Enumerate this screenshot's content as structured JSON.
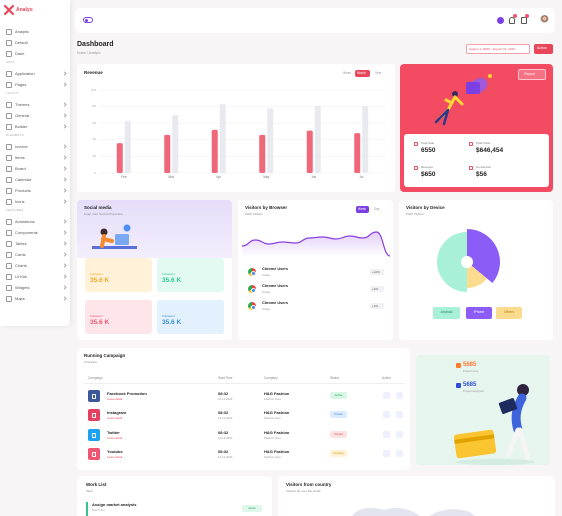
{
  "sidebar": {
    "brand": "Analyo",
    "items_top": [
      "Analytic",
      "Default",
      "Dash"
    ],
    "sections": [
      {
        "title": "APPS",
        "items": [
          "Application",
          "Pages"
        ]
      },
      {
        "title": "LAYOUT",
        "items": [
          "Themes",
          "General",
          "Builder"
        ]
      },
      {
        "title": "ELEMENTS",
        "items": [
          "Invoice",
          "Items",
          "Board",
          "Calendar",
          "Products",
          "Icons"
        ]
      },
      {
        "title": "FEATURES",
        "items": [
          "Animations",
          "Components",
          "Tables",
          "Cards",
          "Charts",
          "UI Kits",
          "Widgets",
          "Maps"
        ]
      }
    ]
  },
  "header": {
    "title": "Dashboard",
    "breadcrumb": "Home / Analytic",
    "date_range": "August 1, 2020 - August 31, 2020",
    "action": "Action"
  },
  "revenue": {
    "type": "bar",
    "title": "Revenue",
    "tabs": [
      "Week",
      "Month",
      "Year"
    ],
    "categories": [
      "Feb",
      "Mar",
      "Apr",
      "May",
      "Jun",
      "Jul"
    ],
    "series": [
      {
        "color": "#f0677a",
        "values": [
          36,
          46,
          52,
          46,
          51,
          48
        ]
      },
      {
        "color": "#e9eaf0",
        "values": [
          63,
          70,
          83,
          78,
          81,
          81
        ]
      }
    ],
    "ylim": [
      0,
      100
    ],
    "yticks": [
      0,
      20,
      40,
      60,
      80,
      100
    ]
  },
  "report": {
    "button": "Report",
    "stats": [
      {
        "label": "Total Sale",
        "value": "6550"
      },
      {
        "label": "Total Visits",
        "value": "$646,454"
      },
      {
        "label": "Revenue",
        "value": "$650"
      },
      {
        "label": "Conversion",
        "value": "$56"
      }
    ]
  },
  "social": {
    "title": "Social media",
    "subtitle": "Keep Your Social Properties",
    "tiles": [
      {
        "label": "Followers",
        "value": "35.6 K"
      },
      {
        "label": "Followers",
        "value": "35.6 K"
      },
      {
        "label": "Followers",
        "value": "35.6 K"
      },
      {
        "label": "Followers",
        "value": "35.6 K"
      }
    ]
  },
  "browser": {
    "type": "line",
    "title": "Visitors by Browser",
    "subtitle": "2020 Visitors",
    "tabs": [
      "Week",
      "Day"
    ],
    "color": "#8b3fe0",
    "values": [
      22,
      34,
      26,
      30,
      28,
      38,
      40,
      36,
      42,
      38,
      50,
      2
    ],
    "rows": [
      {
        "name": "Chrome Users",
        "sub": "Today",
        "change": "+12%"
      },
      {
        "name": "Chrome Users",
        "sub": "Today",
        "change": "+4%"
      },
      {
        "name": "Chrome Users",
        "sub": "Today",
        "change": "+4%"
      }
    ]
  },
  "device": {
    "type": "pie",
    "title": "Visitors by Device",
    "subtitle": "2020 Visitors",
    "categories": [
      "Android",
      "iPhone",
      "Others"
    ],
    "values": [
      50,
      36,
      14
    ],
    "colors": [
      "#a8f0d8",
      "#8b5cf6",
      "#fbdc8e"
    ]
  },
  "campaign": {
    "title": "Running Campaign",
    "subtitle": "Overview",
    "columns": [
      "Campaign",
      "Start Time",
      "Company",
      "Status",
      "Action"
    ],
    "rows": [
      {
        "campaign": "Facebook Promotion",
        "campaign_sub": "Leave detail",
        "time": "08:32",
        "date": "12-12-2020",
        "company": "H&G Fashion",
        "company_sub": "Fashion store",
        "status": "Active"
      },
      {
        "campaign": "Instagram",
        "campaign_sub": "Leave detail",
        "time": "08:32",
        "date": "12-12-2020",
        "company": "H&G Fashion",
        "company_sub": "Fashion store",
        "status": "Pause"
      },
      {
        "campaign": "Twitter",
        "campaign_sub": "Leave detail",
        "time": "08:32",
        "date": "12-12-2020",
        "company": "H&G Fashion",
        "company_sub": "Fashion store",
        "status": "Closed"
      },
      {
        "campaign": "Youtube",
        "campaign_sub": "Leave detail",
        "time": "08:32",
        "date": "12-12-2020",
        "company": "H&G Fashion",
        "company_sub": "Fashion store",
        "status": "Pending"
      }
    ]
  },
  "projects": {
    "items": [
      {
        "value": "5685",
        "label": "Project done"
      },
      {
        "value": "5685",
        "label": "Project assigned"
      }
    ]
  },
  "worklist": {
    "title": "Work List",
    "subtitle": "Task",
    "item": "Assign market analysis",
    "item_sub": "Due 5 Jun",
    "status": "Active"
  },
  "country": {
    "title": "Visitors from country",
    "subtitle": "Visitors all over the world"
  }
}
